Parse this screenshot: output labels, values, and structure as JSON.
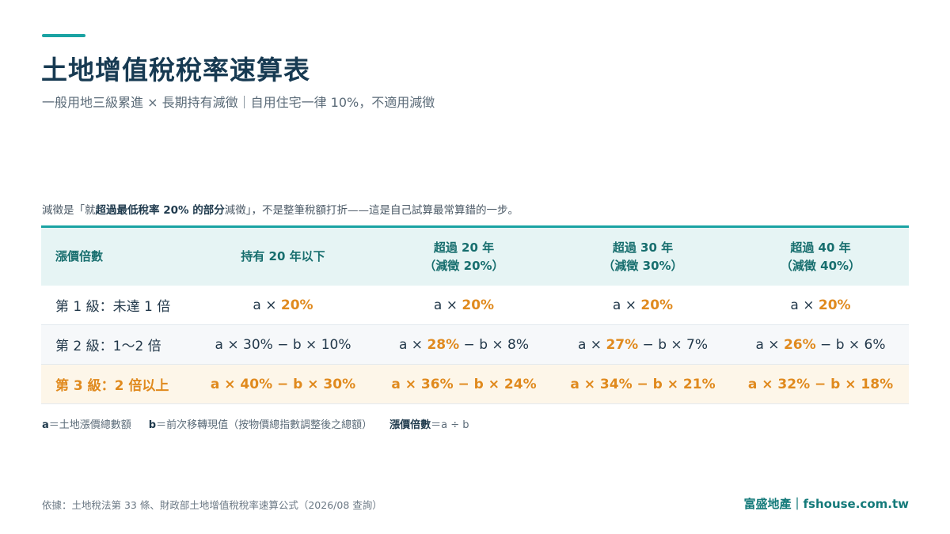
{
  "header": {
    "title": "土地增值稅稅率速算表",
    "subtitle": "一般用地三級累進 × 長期持有減徵｜自用住宅一律 10%，不適用減徵"
  },
  "note": {
    "prefix": "減徵是「就",
    "bold": "超過最低稅率 20% 的部分",
    "suffix": "減徵」，不是整筆稅額打折——這是自己試算最常算錯的一步。"
  },
  "table": {
    "columns": [
      {
        "line1": "漲價倍數",
        "line2": ""
      },
      {
        "line1": "持有 20 年以下",
        "line2": ""
      },
      {
        "line1": "超過 20 年",
        "line2": "（減徵 20%）"
      },
      {
        "line1": "超過 30 年",
        "line2": "（減徵 30%）"
      },
      {
        "line1": "超過 40 年",
        "line2": "（減徵 40%）"
      }
    ],
    "rows": [
      {
        "label": "第 1 級：未達 1 倍",
        "cells": [
          {
            "a": "a × ",
            "rate": "20%",
            "b": ""
          },
          {
            "a": "a × ",
            "rate": "20%",
            "b": ""
          },
          {
            "a": "a × ",
            "rate": "20%",
            "b": ""
          },
          {
            "a": "a × ",
            "rate": "20%",
            "b": ""
          }
        ]
      },
      {
        "label": "第 2 級：1～2 倍",
        "cells": [
          {
            "a": "a × ",
            "rate": "30%",
            "b": " − b × 10%"
          },
          {
            "a": "a × ",
            "rate": "28%",
            "b": " − b × 8%"
          },
          {
            "a": "a × ",
            "rate": "27%",
            "b": " − b × 7%"
          },
          {
            "a": "a × ",
            "rate": "26%",
            "b": " − b × 6%"
          }
        ]
      },
      {
        "label": "第 3 級：2 倍以上",
        "cells": [
          {
            "text": "a × 40% − b × 30%"
          },
          {
            "text": "a × 36% − b × 24%"
          },
          {
            "text": "a × 34% − b × 21%"
          },
          {
            "text": "a × 32% − b × 18%"
          }
        ]
      }
    ]
  },
  "legend": {
    "a_key": "a",
    "a_def": "＝土地漲價總數額",
    "b_key": "b",
    "b_def": "＝前次移轉現值（按物價總指數調整後之總額）",
    "ratio_key": "漲價倍數",
    "ratio_def": "＝a ÷ b"
  },
  "footer": {
    "source": "依據：土地稅法第 33 條、財政部土地增值稅稅率速算公式（2026/08 查詢）",
    "brand": "富盛地產｜fshouse.com.tw"
  },
  "colors": {
    "accent": "#1aa3a3",
    "title": "#173a52",
    "highlight": "#e08a1e",
    "header_bg": "#e6f4f4",
    "level3_bg": "#fdf6e9"
  }
}
